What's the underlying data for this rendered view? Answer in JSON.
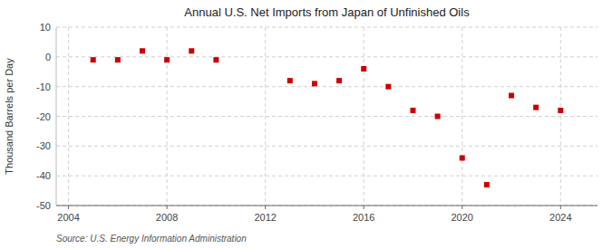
{
  "chart_data": {
    "type": "scatter",
    "title": "Annual U.S. Net Imports from Japan of Unfinished Oils",
    "ylabel": "Thousand Barrels per Day",
    "source": "Source: U.S. Energy Information Administration",
    "x": [
      2005,
      2006,
      2007,
      2008,
      2009,
      2010,
      2013,
      2014,
      2015,
      2016,
      2017,
      2018,
      2019,
      2020,
      2021,
      2022,
      2023,
      2024
    ],
    "values": [
      -1,
      -1,
      2,
      -1,
      2,
      -1,
      -8,
      -9,
      -8,
      -4,
      -10,
      -18,
      -20,
      -34,
      -43,
      -13,
      -17,
      -18
    ],
    "color": "#cc0000",
    "marker": "square",
    "xlim": [
      2003.5,
      2025.5
    ],
    "ylim": [
      -50,
      10
    ],
    "xticks": [
      2004,
      2008,
      2012,
      2016,
      2020,
      2024
    ],
    "yticks": [
      10,
      0,
      -10,
      -20,
      -30,
      -40,
      -50
    ],
    "grid": true
  }
}
